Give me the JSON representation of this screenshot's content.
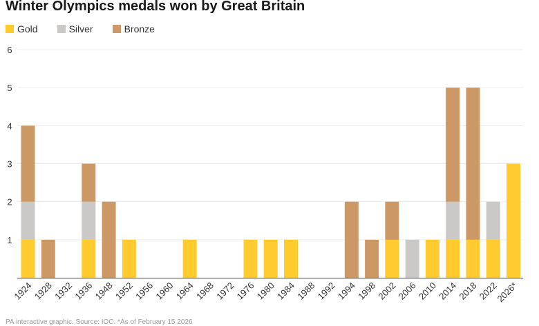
{
  "chart_data": {
    "type": "bar",
    "stacked": true,
    "title": "Winter Olympics medals won by Great Britain",
    "xlabel": "",
    "ylabel": "",
    "ylim": [
      0,
      6
    ],
    "yticks": [
      1,
      2,
      3,
      4,
      5,
      6
    ],
    "grid": true,
    "legend_position": "top-left",
    "categories": [
      "1924",
      "1928",
      "1932",
      "1936",
      "1948",
      "1952",
      "1956",
      "1960",
      "1964",
      "1968",
      "1972",
      "1976",
      "1980",
      "1984",
      "1988",
      "1992",
      "1994",
      "1998",
      "2002",
      "2006",
      "2010",
      "2014",
      "2018",
      "2022",
      "2026*"
    ],
    "series": [
      {
        "name": "Gold",
        "color": "#ffcb2e",
        "values": [
          1,
          0,
          0,
          1,
          0,
          1,
          0,
          0,
          1,
          0,
          0,
          1,
          1,
          1,
          0,
          0,
          0,
          0,
          1,
          0,
          1,
          1,
          1,
          1,
          3
        ]
      },
      {
        "name": "Silver",
        "color": "#cbc9c7",
        "values": [
          1,
          0,
          0,
          1,
          0,
          0,
          0,
          0,
          0,
          0,
          0,
          0,
          0,
          0,
          0,
          0,
          0,
          0,
          0,
          1,
          0,
          1,
          0,
          1,
          0
        ]
      },
      {
        "name": "Bronze",
        "color": "#cc9966",
        "values": [
          2,
          1,
          0,
          1,
          2,
          0,
          0,
          0,
          0,
          0,
          0,
          0,
          0,
          0,
          0,
          0,
          2,
          1,
          1,
          0,
          0,
          3,
          4,
          0,
          0
        ]
      }
    ]
  },
  "source_text": "PA  interactive graphic. Source: IOC. *As of February 15 2026"
}
